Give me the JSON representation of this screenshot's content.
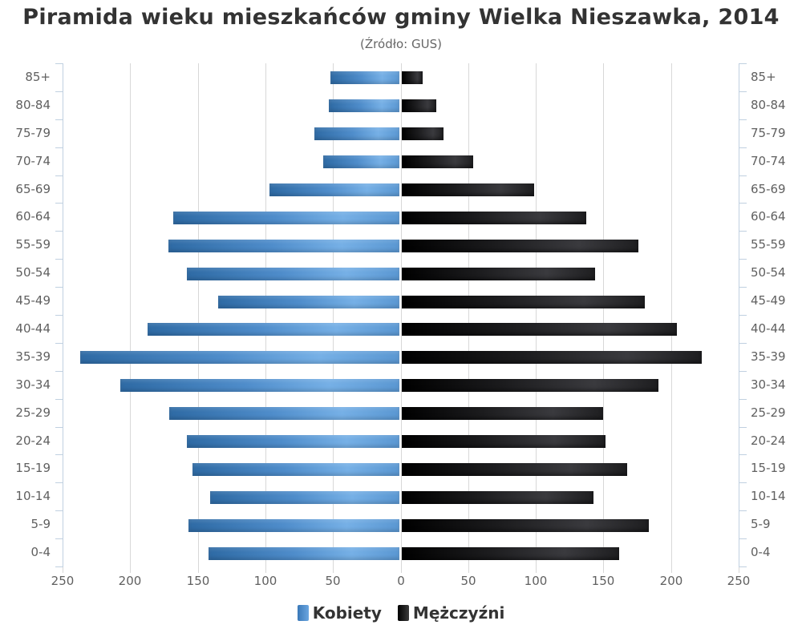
{
  "title": "Piramida wieku mieszkańców gminy Wielka Nieszawka, 2014",
  "subtitle": "(Źródło: GUS)",
  "legend": {
    "female_label": "Kobiety",
    "male_label": "Mężczyźni"
  },
  "colors": {
    "female": "#4a8acb",
    "male": "#1a1a1a",
    "grid": "#d8d8d8",
    "text": "#606060",
    "title": "#333333"
  },
  "x_ticks_left": [
    "250",
    "200",
    "150",
    "100",
    "50",
    "0"
  ],
  "x_ticks_right": [
    "0",
    "50",
    "100",
    "150",
    "200",
    "250"
  ],
  "chart_data": {
    "type": "bar",
    "orientation": "horizontal",
    "subtype": "population-pyramid",
    "title": "Piramida wieku mieszkańców gminy Wielka Nieszawka, 2014",
    "subtitle": "(Źródło: GUS)",
    "xlabel": "",
    "ylabel": "",
    "xlim": [
      -250,
      250
    ],
    "x_ticks": [
      250,
      200,
      150,
      100,
      50,
      0,
      50,
      100,
      150,
      200,
      250
    ],
    "grid": true,
    "legend_position": "bottom",
    "categories": [
      "85+",
      "80-84",
      "75-79",
      "70-74",
      "65-69",
      "60-64",
      "55-59",
      "50-54",
      "45-49",
      "40-44",
      "35-39",
      "30-34",
      "25-29",
      "20-24",
      "15-19",
      "10-14",
      "5-9",
      "0-4"
    ],
    "series": [
      {
        "name": "Kobiety",
        "side": "left",
        "values": [
          52,
          53,
          64,
          57,
          97,
          168,
          172,
          158,
          135,
          187,
          237,
          207,
          171,
          158,
          154,
          141,
          157,
          142
        ]
      },
      {
        "name": "Mężczyźni",
        "side": "right",
        "values": [
          16,
          26,
          31,
          53,
          98,
          137,
          175,
          143,
          180,
          204,
          222,
          190,
          149,
          151,
          167,
          142,
          183,
          161
        ]
      }
    ]
  }
}
